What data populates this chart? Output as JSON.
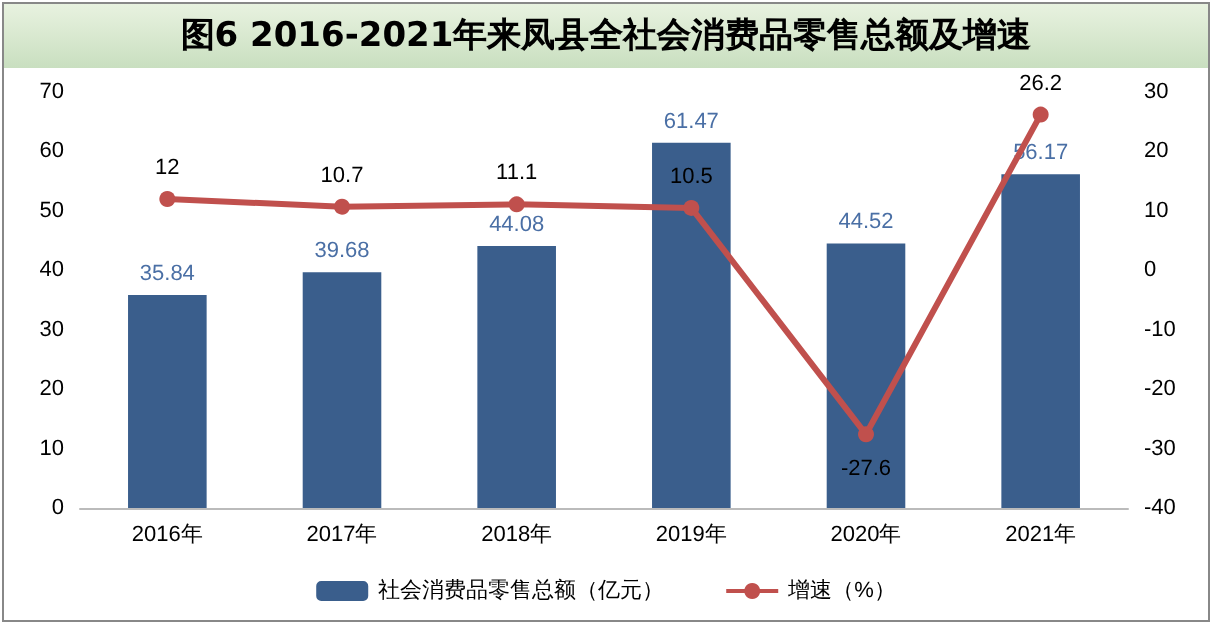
{
  "chart_data": {
    "type": "bar",
    "title": "图6   2016-2021年来凤县全社会消费品零售总额及增速",
    "categories": [
      "2016年",
      "2017年",
      "2018年",
      "2019年",
      "2020年",
      "2021年"
    ],
    "series": [
      {
        "name": "社会消费品零售总额（亿元）",
        "color": "#3a5e8c",
        "values": [
          35.84,
          39.68,
          44.08,
          61.47,
          44.52,
          56.17
        ]
      },
      {
        "name": "增速（%）",
        "type": "line",
        "axis": "y2",
        "color": "#c0504d",
        "values": [
          12,
          10.7,
          11.1,
          10.5,
          -27.6,
          26.2
        ]
      }
    ],
    "ylim": [
      0,
      70
    ],
    "yticks": [
      0,
      10,
      20,
      30,
      40,
      50,
      60,
      70
    ],
    "y2lim": [
      -40,
      30
    ],
    "y2ticks": [
      -40,
      -30,
      -20,
      -10,
      0,
      10,
      20,
      30
    ],
    "data_labels": true,
    "grid": false,
    "legend": "bottom",
    "marker": "circle",
    "line_style": "solid"
  }
}
